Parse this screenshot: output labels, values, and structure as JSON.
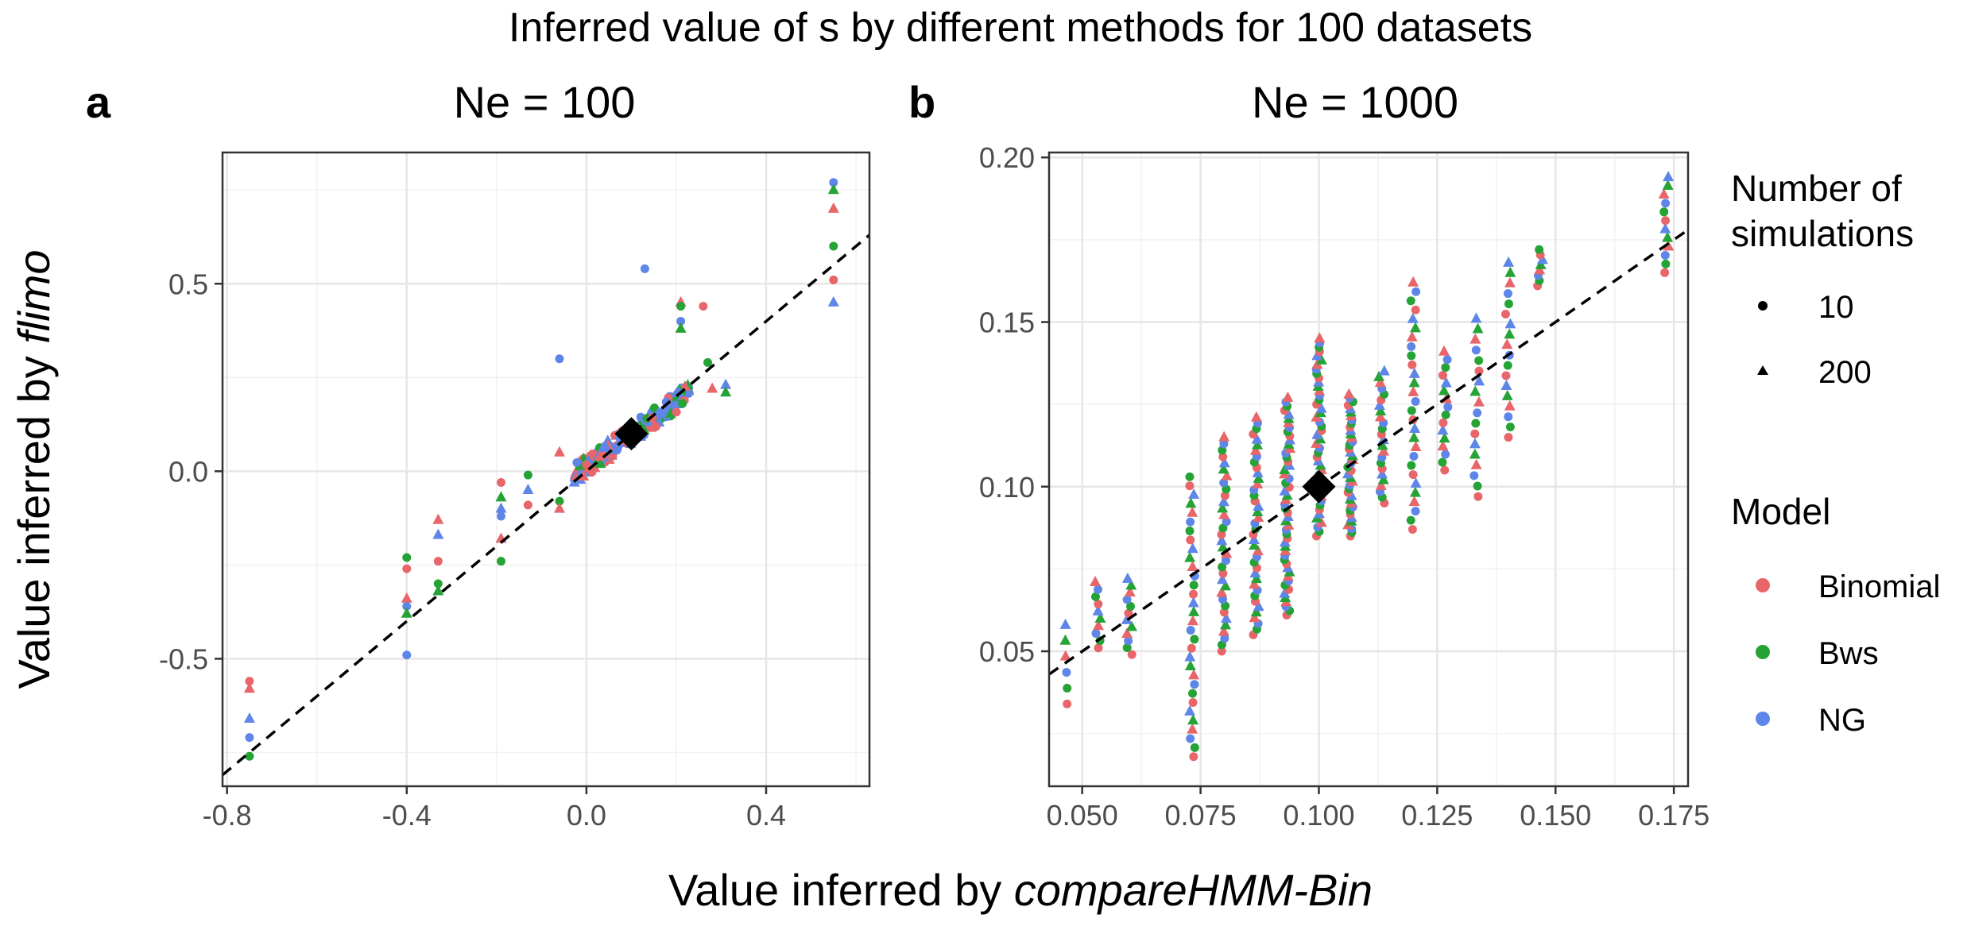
{
  "figure": {
    "title": "Inferred value of s by different methods for 100 datasets",
    "xlabel_prefix": "Value inferred by ",
    "xlabel_italic": "compareHMM-Bin",
    "ylabel_prefix": "Value inferred by ",
    "ylabel_italic": "flimo"
  },
  "legend": {
    "shape_title_line1": "Number of",
    "shape_title_line2": "simulations",
    "shapes": [
      {
        "label": "10",
        "shape": "circle"
      },
      {
        "label": "200",
        "shape": "triangle"
      }
    ],
    "model_title": "Model",
    "models": [
      {
        "label": "Binomial",
        "color": "#e8666a"
      },
      {
        "label": "Bws",
        "color": "#25a335"
      },
      {
        "label": "NG",
        "color": "#5e86e8"
      }
    ]
  },
  "chart_data": [
    {
      "type": "scatter",
      "panel_tag": "a",
      "title": "Ne = 100",
      "xlim": [
        -0.81,
        0.63
      ],
      "ylim": [
        -0.84,
        0.85
      ],
      "x_ticks": [
        -0.8,
        -0.4,
        0.0,
        0.4
      ],
      "x_tick_labels": [
        "-0.8",
        "-0.4",
        "0.0",
        "0.4"
      ],
      "y_ticks": [
        -0.5,
        0.0,
        0.5
      ],
      "y_tick_labels": [
        "-0.5",
        "0.0",
        "0.5"
      ],
      "reference_line": {
        "slope": 1,
        "intercept": 0,
        "style": "dashed"
      },
      "true_value": {
        "x": 0.1,
        "y": 0.1,
        "marker": "diamond"
      },
      "cluster": {
        "center_x": 0.1,
        "center_y": 0.1,
        "spread": 0.08,
        "n": 180
      },
      "points": [
        {
          "x": -0.75,
          "y": -0.56,
          "model": "Binomial",
          "sims": "10"
        },
        {
          "x": -0.75,
          "y": -0.58,
          "model": "Binomial",
          "sims": "200"
        },
        {
          "x": -0.75,
          "y": -0.66,
          "model": "NG",
          "sims": "200"
        },
        {
          "x": -0.75,
          "y": -0.71,
          "model": "NG",
          "sims": "10"
        },
        {
          "x": -0.75,
          "y": -0.76,
          "model": "Bws",
          "sims": "10"
        },
        {
          "x": -0.4,
          "y": -0.23,
          "model": "Bws",
          "sims": "10"
        },
        {
          "x": -0.4,
          "y": -0.26,
          "model": "Binomial",
          "sims": "10"
        },
        {
          "x": -0.4,
          "y": -0.34,
          "model": "Binomial",
          "sims": "200"
        },
        {
          "x": -0.4,
          "y": -0.36,
          "model": "NG",
          "sims": "10"
        },
        {
          "x": -0.4,
          "y": -0.38,
          "model": "Bws",
          "sims": "200"
        },
        {
          "x": -0.4,
          "y": -0.49,
          "model": "NG",
          "sims": "10"
        },
        {
          "x": -0.33,
          "y": -0.13,
          "model": "Binomial",
          "sims": "200"
        },
        {
          "x": -0.33,
          "y": -0.17,
          "model": "NG",
          "sims": "200"
        },
        {
          "x": -0.33,
          "y": -0.24,
          "model": "Binomial",
          "sims": "10"
        },
        {
          "x": -0.33,
          "y": -0.3,
          "model": "Bws",
          "sims": "10"
        },
        {
          "x": -0.33,
          "y": -0.32,
          "model": "Bws",
          "sims": "200"
        },
        {
          "x": -0.19,
          "y": -0.03,
          "model": "Binomial",
          "sims": "10"
        },
        {
          "x": -0.19,
          "y": -0.07,
          "model": "Bws",
          "sims": "200"
        },
        {
          "x": -0.19,
          "y": -0.1,
          "model": "NG",
          "sims": "200"
        },
        {
          "x": -0.19,
          "y": -0.12,
          "model": "NG",
          "sims": "10"
        },
        {
          "x": -0.19,
          "y": -0.18,
          "model": "Binomial",
          "sims": "200"
        },
        {
          "x": -0.19,
          "y": -0.24,
          "model": "Bws",
          "sims": "10"
        },
        {
          "x": -0.13,
          "y": -0.01,
          "model": "Bws",
          "sims": "10"
        },
        {
          "x": -0.13,
          "y": -0.05,
          "model": "NG",
          "sims": "200"
        },
        {
          "x": -0.13,
          "y": -0.09,
          "model": "Binomial",
          "sims": "10"
        },
        {
          "x": -0.06,
          "y": 0.3,
          "model": "NG",
          "sims": "10"
        },
        {
          "x": -0.06,
          "y": 0.05,
          "model": "Binomial",
          "sims": "200"
        },
        {
          "x": -0.06,
          "y": -0.08,
          "model": "Bws",
          "sims": "10"
        },
        {
          "x": -0.06,
          "y": -0.1,
          "model": "Binomial",
          "sims": "200"
        },
        {
          "x": 0.13,
          "y": 0.54,
          "model": "NG",
          "sims": "10"
        },
        {
          "x": 0.21,
          "y": 0.45,
          "model": "Binomial",
          "sims": "200"
        },
        {
          "x": 0.21,
          "y": 0.44,
          "model": "Bws",
          "sims": "10"
        },
        {
          "x": 0.21,
          "y": 0.4,
          "model": "NG",
          "sims": "10"
        },
        {
          "x": 0.21,
          "y": 0.38,
          "model": "Bws",
          "sims": "200"
        },
        {
          "x": 0.26,
          "y": 0.44,
          "model": "Binomial",
          "sims": "10"
        },
        {
          "x": 0.27,
          "y": 0.29,
          "model": "Bws",
          "sims": "10"
        },
        {
          "x": 0.28,
          "y": 0.22,
          "model": "Binomial",
          "sims": "200"
        },
        {
          "x": 0.31,
          "y": 0.23,
          "model": "NG",
          "sims": "200"
        },
        {
          "x": 0.31,
          "y": 0.21,
          "model": "Bws",
          "sims": "200"
        },
        {
          "x": 0.55,
          "y": 0.77,
          "model": "NG",
          "sims": "10"
        },
        {
          "x": 0.55,
          "y": 0.75,
          "model": "Bws",
          "sims": "200"
        },
        {
          "x": 0.55,
          "y": 0.7,
          "model": "Binomial",
          "sims": "200"
        },
        {
          "x": 0.55,
          "y": 0.6,
          "model": "Bws",
          "sims": "10"
        },
        {
          "x": 0.55,
          "y": 0.51,
          "model": "Binomial",
          "sims": "10"
        },
        {
          "x": 0.55,
          "y": 0.45,
          "model": "NG",
          "sims": "200"
        }
      ]
    },
    {
      "type": "scatter",
      "panel_tag": "b",
      "title": "Ne = 1000",
      "xlim": [
        0.043,
        0.178
      ],
      "ylim": [
        0.009,
        0.2015
      ],
      "x_ticks": [
        0.05,
        0.075,
        0.1,
        0.125,
        0.15,
        0.175
      ],
      "x_tick_labels": [
        "0.050",
        "0.075",
        "0.100",
        "0.125",
        "0.150",
        "0.175"
      ],
      "y_ticks": [
        0.05,
        0.1,
        0.15,
        0.2
      ],
      "y_tick_labels": [
        "0.05",
        "0.10",
        "0.15",
        "0.20"
      ],
      "reference_line": {
        "slope": 1,
        "intercept": 0,
        "style": "dashed"
      },
      "true_value": {
        "x": 0.1,
        "y": 0.1,
        "marker": "diamond"
      },
      "columns": [
        {
          "x": 0.0467,
          "ymin": 0.034,
          "ymax": 0.058,
          "n": 6
        },
        {
          "x": 0.0533,
          "ymin": 0.051,
          "ymax": 0.071,
          "n": 10
        },
        {
          "x": 0.06,
          "ymin": 0.049,
          "ymax": 0.072,
          "n": 12
        },
        {
          "x": 0.0733,
          "ymin": 0.018,
          "ymax": 0.103,
          "n": 32
        },
        {
          "x": 0.08,
          "ymin": 0.05,
          "ymax": 0.115,
          "n": 34
        },
        {
          "x": 0.0867,
          "ymin": 0.055,
          "ymax": 0.121,
          "n": 40
        },
        {
          "x": 0.0933,
          "ymin": 0.061,
          "ymax": 0.127,
          "n": 52
        },
        {
          "x": 0.1,
          "ymin": 0.085,
          "ymax": 0.145,
          "n": 46
        },
        {
          "x": 0.1067,
          "ymin": 0.085,
          "ymax": 0.128,
          "n": 40
        },
        {
          "x": 0.1133,
          "ymin": 0.095,
          "ymax": 0.135,
          "n": 24
        },
        {
          "x": 0.12,
          "ymin": 0.087,
          "ymax": 0.162,
          "n": 28
        },
        {
          "x": 0.1267,
          "ymin": 0.105,
          "ymax": 0.141,
          "n": 16
        },
        {
          "x": 0.1333,
          "ymin": 0.097,
          "ymax": 0.151,
          "n": 18
        },
        {
          "x": 0.14,
          "ymin": 0.115,
          "ymax": 0.168,
          "n": 18
        },
        {
          "x": 0.1467,
          "ymin": 0.161,
          "ymax": 0.172,
          "n": 8
        },
        {
          "x": 0.1733,
          "ymin": 0.165,
          "ymax": 0.194,
          "n": 12
        }
      ]
    }
  ]
}
